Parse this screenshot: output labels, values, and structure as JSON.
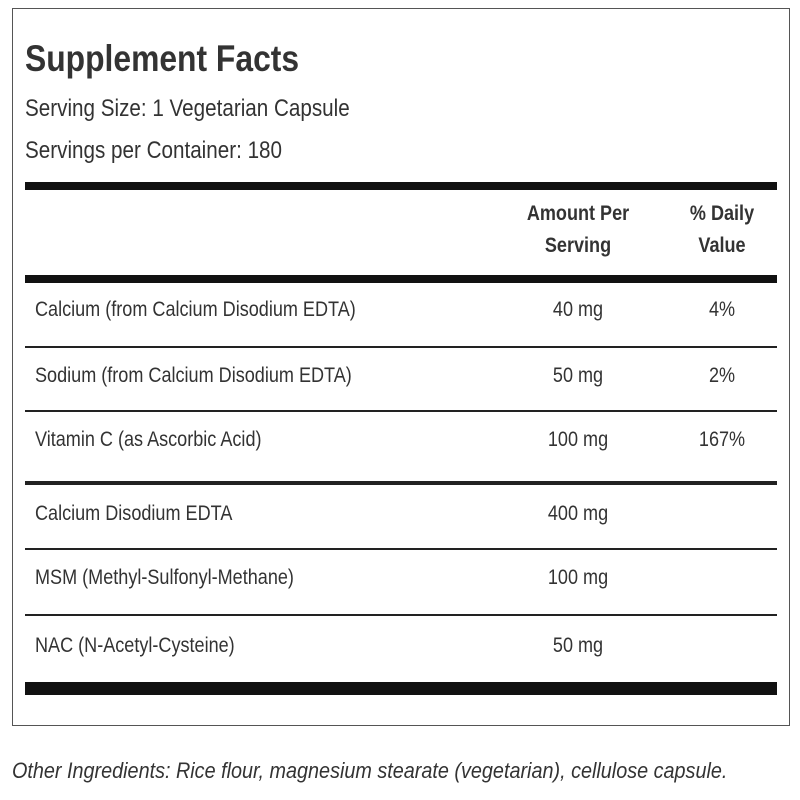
{
  "header": {
    "title": "Supplement Facts",
    "serving_size": "Serving Size: 1 Vegetarian Capsule",
    "servings_per_container": "Servings per Container: 180"
  },
  "table": {
    "columns": [
      "Amount Per Serving",
      "% Daily Value"
    ],
    "rows": [
      [
        "Calcium (from Calcium Disodium EDTA)",
        "40 mg",
        "4%"
      ],
      [
        "Sodium (from Calcium Disodium EDTA)",
        "50 mg",
        "2%"
      ],
      [
        "Vitamin C (as Ascorbic Acid)",
        "100 mg",
        "167%"
      ],
      [
        "Calcium Disodium EDTA",
        "400 mg"
      ],
      [
        "MSM (Methyl-Sulfonyl-Methane)",
        "100 mg"
      ],
      [
        "NAC (N-Acetyl-Cysteine)",
        "50 mg"
      ]
    ]
  },
  "footer": {
    "other_ingredients": "Other Ingredients: Rice flour, magnesium stearate (vegetarian), cellulose capsule."
  }
}
